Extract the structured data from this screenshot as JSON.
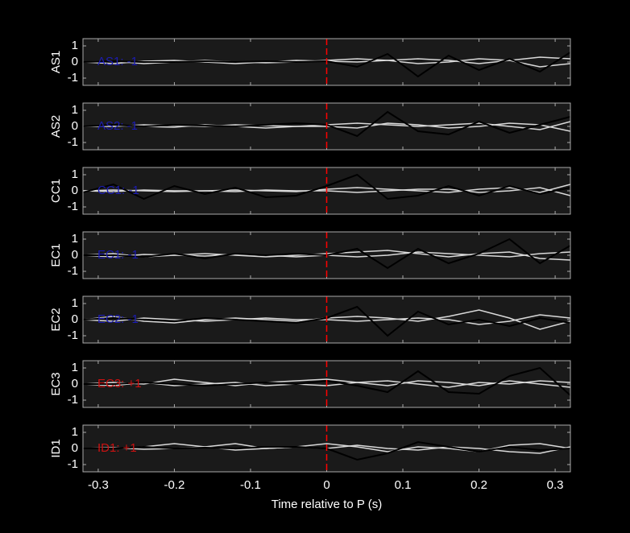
{
  "chart_data": [
    {
      "type": "line",
      "ylabel": "AS1",
      "annotation": "AS1: -1",
      "annotation_color": "#1c1cb4",
      "x": [
        -0.32,
        -0.28,
        -0.24,
        -0.2,
        -0.16,
        -0.12,
        -0.08,
        -0.04,
        0,
        0.04,
        0.08,
        0.12,
        0.16,
        0.2,
        0.24,
        0.28,
        0.32
      ],
      "series": [
        {
          "color": "#d9d9d9",
          "values": [
            0,
            -0.1,
            0.05,
            0.1,
            0,
            -0.1,
            0,
            0.1,
            0.05,
            0,
            0.1,
            0.2,
            0.1,
            -0.1,
            0.1,
            0.3,
            0.2
          ]
        },
        {
          "color": "#d9d9d9",
          "values": [
            0,
            0.05,
            -0.1,
            0,
            0.1,
            0,
            -0.05,
            0,
            0.1,
            0.2,
            0.1,
            -0.1,
            0,
            0.2,
            0.1,
            -0.3,
            -0.1
          ]
        },
        {
          "color": "#000000",
          "values": [
            0,
            0.05,
            0,
            0,
            0.05,
            0,
            0.05,
            0,
            0.05,
            -0.3,
            0.5,
            -0.9,
            0.4,
            -0.5,
            0.2,
            -0.6,
            0.6
          ]
        }
      ],
      "xlim": [
        -0.32,
        0.32
      ],
      "xticks": [
        -0.3,
        -0.2,
        -0.1,
        0,
        0.1,
        0.2,
        0.3
      ],
      "ylim": [
        -1.45,
        1.45
      ],
      "yticks": [
        -1,
        0,
        1
      ],
      "vline": 0,
      "vline_color": "#ff0000"
    },
    {
      "type": "line",
      "ylabel": "AS2",
      "annotation": "AS2: -1",
      "annotation_color": "#1c1cb4",
      "x": [
        -0.32,
        -0.28,
        -0.24,
        -0.2,
        -0.16,
        -0.12,
        -0.08,
        -0.04,
        0,
        0.04,
        0.08,
        0.12,
        0.16,
        0.2,
        0.24,
        0.28,
        0.32
      ],
      "series": [
        {
          "color": "#d9d9d9",
          "values": [
            0,
            0,
            0.1,
            0.05,
            0,
            0.1,
            0.05,
            0,
            0.1,
            0.2,
            0.1,
            0,
            0.1,
            0.2,
            0,
            -0.2,
            0.3
          ]
        },
        {
          "color": "#d9d9d9",
          "values": [
            0,
            0.05,
            0,
            -0.05,
            0.1,
            0,
            -0.1,
            0,
            0,
            -0.1,
            0.2,
            0.1,
            -0.1,
            0,
            0.2,
            0.1,
            -0.3
          ]
        },
        {
          "color": "#000000",
          "values": [
            0,
            0.1,
            0,
            0.1,
            0.05,
            0,
            0.1,
            0.2,
            0.1,
            -0.6,
            0.9,
            -0.3,
            -0.5,
            0.3,
            -0.4,
            0.1,
            0.6
          ]
        }
      ],
      "xlim": [
        -0.32,
        0.32
      ],
      "xticks": [
        -0.3,
        -0.2,
        -0.1,
        0,
        0.1,
        0.2,
        0.3
      ],
      "ylim": [
        -1.45,
        1.45
      ],
      "yticks": [
        -1,
        0,
        1
      ],
      "vline": 0,
      "vline_color": "#ff0000"
    },
    {
      "type": "line",
      "ylabel": "CC1",
      "annotation": "CC1: -1",
      "annotation_color": "#1c1cb4",
      "x": [
        -0.32,
        -0.28,
        -0.24,
        -0.2,
        -0.16,
        -0.12,
        -0.08,
        -0.04,
        0,
        0.04,
        0.08,
        0.12,
        0.16,
        0.2,
        0.24,
        0.28,
        0.32
      ],
      "series": [
        {
          "color": "#d9d9d9",
          "values": [
            0,
            0.05,
            0,
            -0.05,
            0,
            0.05,
            0,
            -0.05,
            0.1,
            0.2,
            0.1,
            0,
            -0.1,
            0.1,
            0.2,
            -0.1,
            0.4
          ]
        },
        {
          "color": "#d9d9d9",
          "values": [
            0,
            -0.05,
            0.05,
            0,
            0,
            -0.05,
            0.05,
            0,
            0,
            -0.1,
            0,
            0.1,
            0.1,
            -0.1,
            0,
            0.2,
            -0.3
          ]
        },
        {
          "color": "#000000",
          "values": [
            -0.1,
            0.4,
            -0.5,
            0.3,
            -0.2,
            0.2,
            -0.4,
            -0.3,
            0.3,
            1.0,
            -0.5,
            -0.3,
            0.3,
            -0.3,
            0.3,
            -0.2,
            0.2
          ]
        }
      ],
      "xlim": [
        -0.32,
        0.32
      ],
      "xticks": [
        -0.3,
        -0.2,
        -0.1,
        0,
        0.1,
        0.2,
        0.3
      ],
      "ylim": [
        -1.45,
        1.45
      ],
      "yticks": [
        -1,
        0,
        1
      ],
      "vline": 0,
      "vline_color": "#ff0000"
    },
    {
      "type": "line",
      "ylabel": "EC1",
      "annotation": "EC1: -1",
      "annotation_color": "#1c1cb4",
      "x": [
        -0.32,
        -0.28,
        -0.24,
        -0.2,
        -0.16,
        -0.12,
        -0.08,
        -0.04,
        0,
        0.04,
        0.08,
        0.12,
        0.16,
        0.2,
        0.24,
        0.28,
        0.32
      ],
      "series": [
        {
          "color": "#d9d9d9",
          "values": [
            0,
            0.1,
            -0.1,
            0,
            0.1,
            0,
            -0.1,
            0,
            0.1,
            0.2,
            0.3,
            0.1,
            -0.1,
            0.1,
            0.2,
            -0.2,
            -0.3
          ]
        },
        {
          "color": "#d9d9d9",
          "values": [
            0,
            -0.1,
            0.05,
            0,
            -0.05,
            0.05,
            0,
            -0.1,
            0,
            -0.1,
            0,
            0.2,
            0.1,
            0,
            -0.1,
            0.1,
            0.2
          ]
        },
        {
          "color": "#000000",
          "values": [
            0,
            0,
            -0.1,
            0.1,
            -0.2,
            0.1,
            0,
            0.1,
            0,
            0.4,
            -0.8,
            0.4,
            -0.5,
            0.1,
            1.0,
            -0.5,
            0.6
          ]
        }
      ],
      "xlim": [
        -0.32,
        0.32
      ],
      "xticks": [
        -0.3,
        -0.2,
        -0.1,
        0,
        0.1,
        0.2,
        0.3
      ],
      "ylim": [
        -1.45,
        1.45
      ],
      "yticks": [
        -1,
        0,
        1
      ],
      "vline": 0,
      "vline_color": "#ff0000"
    },
    {
      "type": "line",
      "ylabel": "EC2",
      "annotation": "EC2: -1",
      "annotation_color": "#1c1cb4",
      "x": [
        -0.32,
        -0.28,
        -0.24,
        -0.2,
        -0.16,
        -0.12,
        -0.08,
        -0.04,
        0,
        0.04,
        0.08,
        0.12,
        0.16,
        0.2,
        0.24,
        0.28,
        0.32
      ],
      "series": [
        {
          "color": "#d9d9d9",
          "values": [
            0,
            0.2,
            -0.1,
            -0.2,
            0,
            0.1,
            0,
            -0.1,
            0.1,
            0.2,
            0.1,
            -0.1,
            0.2,
            0.6,
            0.1,
            -0.6,
            -0.1
          ]
        },
        {
          "color": "#d9d9d9",
          "values": [
            0,
            -0.1,
            0.1,
            0,
            -0.1,
            0,
            0.1,
            0,
            0,
            -0.1,
            0,
            0.1,
            0,
            -0.3,
            -0.1,
            0.3,
            0.1
          ]
        },
        {
          "color": "#000000",
          "values": [
            0,
            0.1,
            0,
            -0.1,
            0.1,
            0,
            -0.1,
            -0.2,
            0.1,
            0.8,
            -1.0,
            0.5,
            -0.3,
            0,
            -0.4,
            0.1,
            -0.2
          ]
        }
      ],
      "xlim": [
        -0.32,
        0.32
      ],
      "xticks": [
        -0.3,
        -0.2,
        -0.1,
        0,
        0.1,
        0.2,
        0.3
      ],
      "ylim": [
        -1.45,
        1.45
      ],
      "yticks": [
        -1,
        0,
        1
      ],
      "vline": 0,
      "vline_color": "#ff0000"
    },
    {
      "type": "line",
      "ylabel": "EC3",
      "annotation": "EC3: +1",
      "annotation_color": "#cc1111",
      "x": [
        -0.32,
        -0.28,
        -0.24,
        -0.2,
        -0.16,
        -0.12,
        -0.08,
        -0.04,
        0,
        0.04,
        0.08,
        0.12,
        0.16,
        0.2,
        0.24,
        0.28,
        0.32
      ],
      "series": [
        {
          "color": "#d9d9d9",
          "values": [
            0,
            0.1,
            0,
            0.3,
            0.1,
            -0.1,
            0.1,
            0.2,
            0.3,
            0.1,
            -0.1,
            0.2,
            0.1,
            -0.1,
            0.2,
            0,
            -0.2
          ]
        },
        {
          "color": "#d9d9d9",
          "values": [
            0,
            -0.1,
            0.1,
            -0.1,
            0,
            0.1,
            -0.1,
            0,
            -0.1,
            0.1,
            0.2,
            0,
            -0.2,
            0.1,
            0,
            0.2,
            0.1
          ]
        },
        {
          "color": "#000000",
          "values": [
            0,
            0,
            0.1,
            0,
            -0.1,
            0,
            0.1,
            0,
            0.2,
            -0.1,
            -0.5,
            0.8,
            -0.5,
            -0.6,
            0.5,
            1.0,
            -0.7
          ]
        }
      ],
      "xlim": [
        -0.32,
        0.32
      ],
      "xticks": [
        -0.3,
        -0.2,
        -0.1,
        0,
        0.1,
        0.2,
        0.3
      ],
      "ylim": [
        -1.45,
        1.45
      ],
      "yticks": [
        -1,
        0,
        1
      ],
      "vline": 0,
      "vline_color": "#ff0000"
    },
    {
      "type": "line",
      "ylabel": "ID1",
      "annotation": "ID1: +1",
      "annotation_color": "#cc1111",
      "x": [
        -0.32,
        -0.28,
        -0.24,
        -0.2,
        -0.16,
        -0.12,
        -0.08,
        -0.04,
        0,
        0.04,
        0.08,
        0.12,
        0.16,
        0.2,
        0.24,
        0.28,
        0.32
      ],
      "series": [
        {
          "color": "#d9d9d9",
          "values": [
            0,
            0,
            0.1,
            0.3,
            0.1,
            0.3,
            0,
            0.1,
            0.3,
            0.1,
            -0.2,
            0.1,
            0,
            -0.2,
            0.2,
            0.3,
            0
          ]
        },
        {
          "color": "#d9d9d9",
          "values": [
            0,
            0.05,
            -0.05,
            0,
            0.1,
            -0.1,
            0,
            0.1,
            0,
            0.2,
            0,
            -0.1,
            0.1,
            0,
            -0.2,
            -0.3,
            0.1
          ]
        },
        {
          "color": "#000000",
          "values": [
            0,
            0,
            0.1,
            0,
            0.05,
            0,
            0.1,
            0.1,
            0,
            -0.7,
            -0.3,
            0.4,
            0.1,
            -0.2,
            0.1,
            -0.1,
            0
          ]
        }
      ],
      "xlim": [
        -0.32,
        0.32
      ],
      "xticks": [
        -0.3,
        -0.2,
        -0.1,
        0,
        0.1,
        0.2,
        0.3
      ],
      "ylim": [
        -1.45,
        1.45
      ],
      "yticks": [
        -1,
        0,
        1
      ],
      "vline": 0,
      "vline_color": "#ff0000",
      "xlabel": "Time relative to P (s)"
    }
  ]
}
